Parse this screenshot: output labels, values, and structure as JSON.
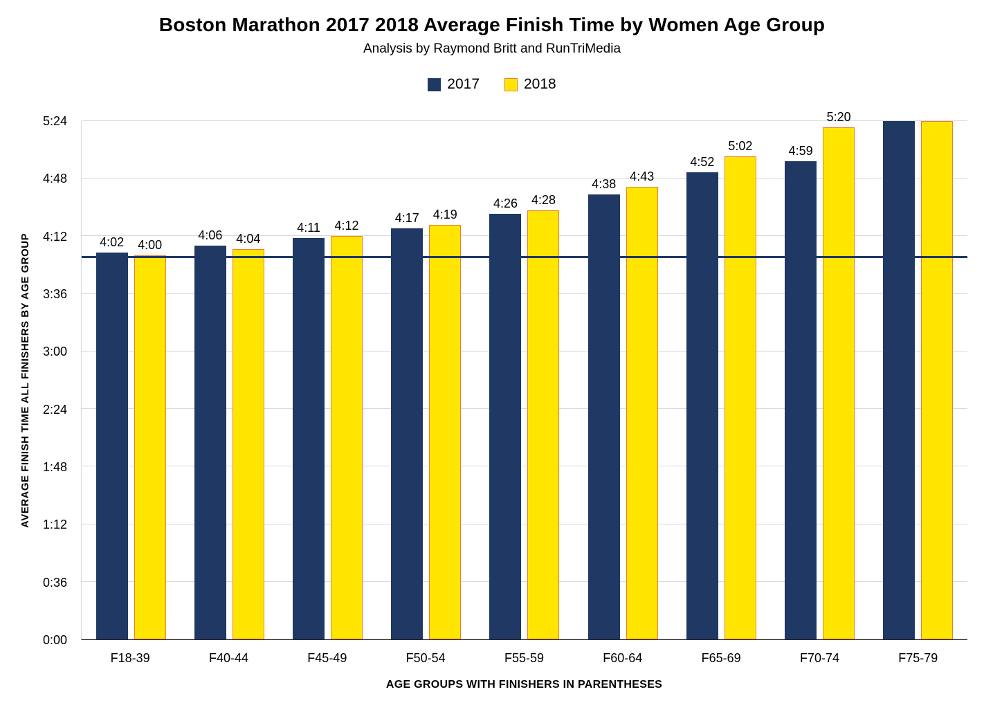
{
  "chart_data": {
    "type": "bar",
    "title": "Boston Marathon 2017 2018 Average Finish Time by Women Age Group",
    "subtitle": "Analysis by Raymond Britt and RunTriMedia",
    "xlabel": "AGE GROUPS WITH FINISHERS IN PARENTHESES",
    "ylabel": "AVERAGE FINISH TIME ALL FINISHERS BY AGE GROUP",
    "legend_position": "top",
    "grid": true,
    "categories": [
      "F18-39",
      "F40-44",
      "F45-49",
      "F50-54",
      "F55-59",
      "F60-64",
      "F65-69",
      "F70-74",
      "F75-79"
    ],
    "series": [
      {
        "name": "2017",
        "color": "#1F3864",
        "border": "#1F3864",
        "values_minutes": [
          242,
          246,
          251,
          257,
          266,
          278,
          292,
          299,
          324
        ],
        "labels": [
          "4:02",
          "4:06",
          "4:11",
          "4:17",
          "4:26",
          "4:38",
          "4:52",
          "4:59",
          ""
        ]
      },
      {
        "name": "2018",
        "color": "#FFE500",
        "border": "#ED7D31",
        "values_minutes": [
          240,
          244,
          252,
          259,
          268,
          283,
          302,
          320,
          324
        ],
        "labels": [
          "4:00",
          "4:04",
          "4:12",
          "4:19",
          "4:28",
          "4:43",
          "5:02",
          "5:20",
          ""
        ]
      }
    ],
    "ylim_minutes": [
      0,
      324
    ],
    "yticks": [
      {
        "label": "0:00",
        "minutes": 0
      },
      {
        "label": "0:36",
        "minutes": 36
      },
      {
        "label": "1:12",
        "minutes": 72
      },
      {
        "label": "1:48",
        "minutes": 108
      },
      {
        "label": "2:24",
        "minutes": 144
      },
      {
        "label": "3:00",
        "minutes": 180
      },
      {
        "label": "3:36",
        "minutes": 216
      },
      {
        "label": "4:12",
        "minutes": 252
      },
      {
        "label": "4:48",
        "minutes": 288
      },
      {
        "label": "5:24",
        "minutes": 324
      }
    ],
    "reference_line": {
      "minutes": 239,
      "color": "#1F3864"
    }
  }
}
